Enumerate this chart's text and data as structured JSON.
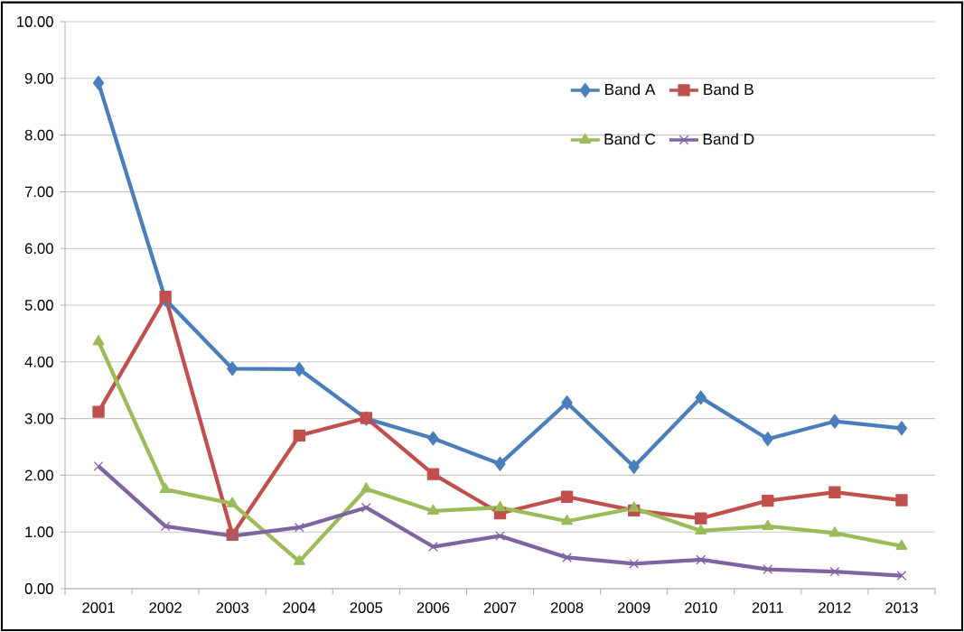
{
  "chart_data": {
    "type": "line",
    "categories": [
      "2001",
      "2002",
      "2003",
      "2004",
      "2005",
      "2006",
      "2007",
      "2008",
      "2009",
      "2010",
      "2011",
      "2012",
      "2013"
    ],
    "series": [
      {
        "name": "Band A",
        "color": "#4a7ebb",
        "marker": "diamond",
        "values": [
          8.92,
          5.1,
          3.88,
          3.87,
          3.0,
          2.65,
          2.2,
          3.28,
          2.15,
          3.37,
          2.64,
          2.95,
          2.83
        ]
      },
      {
        "name": "Band B",
        "color": "#c0504d",
        "marker": "square",
        "values": [
          3.12,
          5.15,
          0.95,
          2.7,
          3.01,
          2.02,
          1.33,
          1.62,
          1.38,
          1.24,
          1.55,
          1.7,
          1.56
        ]
      },
      {
        "name": "Band C",
        "color": "#9bbb59",
        "marker": "triangle",
        "values": [
          4.36,
          1.75,
          1.5,
          0.48,
          1.76,
          1.37,
          1.43,
          1.19,
          1.42,
          1.02,
          1.1,
          0.98,
          0.75
        ]
      },
      {
        "name": "Band D",
        "color": "#8064a2",
        "marker": "cross",
        "values": [
          2.16,
          1.1,
          0.93,
          1.08,
          1.43,
          0.74,
          0.93,
          0.55,
          0.44,
          0.51,
          0.34,
          0.3,
          0.23
        ]
      }
    ],
    "ylim": [
      0,
      10
    ],
    "yticks": [
      {
        "value": 0,
        "label": "0.00"
      },
      {
        "value": 1,
        "label": "1.00"
      },
      {
        "value": 2,
        "label": "2.00"
      },
      {
        "value": 3,
        "label": "3.00"
      },
      {
        "value": 4,
        "label": "4.00"
      },
      {
        "value": 5,
        "label": "5.00"
      },
      {
        "value": 6,
        "label": "6.00"
      },
      {
        "value": 7,
        "label": "7.00"
      },
      {
        "value": 8,
        "label": "8.00"
      },
      {
        "value": 9,
        "label": "9.00"
      },
      {
        "value": 10,
        "label": "10.00"
      }
    ],
    "grid": "y",
    "legend": "top right"
  }
}
